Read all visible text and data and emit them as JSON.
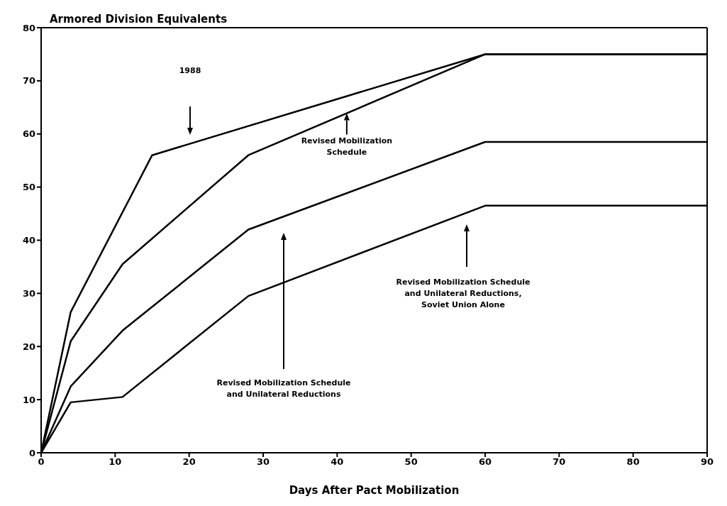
{
  "chart_data": {
    "type": "line",
    "ylabel": "Armored Division Equivalents",
    "xlabel": "Days After Pact Mobilization",
    "xlim": [
      0,
      90
    ],
    "xticks": [
      0,
      10,
      20,
      30,
      40,
      50,
      60,
      70,
      80,
      90
    ],
    "ylim": [
      0,
      80
    ],
    "yticks": [
      0,
      10,
      20,
      30,
      40,
      50,
      60,
      70,
      80
    ],
    "marker": "none",
    "line_style": "solid",
    "series": [
      {
        "color": "#000000",
        "x": [
          0,
          4,
          15,
          60,
          90
        ],
        "values": [
          0,
          26.5,
          56,
          75,
          75
        ]
      },
      {
        "color": "#000000",
        "x": [
          0,
          4,
          11,
          28,
          60,
          90
        ],
        "values": [
          0,
          21,
          35.5,
          56,
          75,
          75
        ]
      },
      {
        "color": "#000000",
        "x": [
          0,
          4,
          11,
          28,
          60,
          90
        ],
        "values": [
          0,
          12.5,
          23,
          42,
          58.5,
          58.5
        ]
      },
      {
        "color": "#000000",
        "x": [
          0,
          4,
          11,
          28,
          60,
          90
        ],
        "values": [
          0,
          9.5,
          10.5,
          29.5,
          46.5,
          46.5
        ]
      }
    ],
    "annotations": [
      "1988",
      {
        "text": "Revised Mobilization\nSchedule",
        "x": 41.3,
        "y": 63.9
      },
      "Revised Mobilization Schedule\nand Unilateral Reductions",
      "Revised Mobilization Schedule\nand Unilateral Reductions,\nSoviet Union Alone"
    ]
  }
}
